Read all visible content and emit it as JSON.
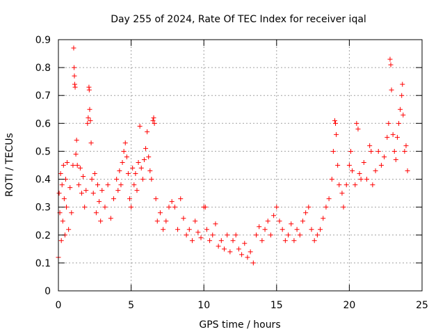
{
  "chart_data": {
    "type": "scatter",
    "title": "Day 255 of 2024, Rate Of TEC Index for receiver iqal",
    "xlabel": "GPS time / hours",
    "ylabel": "ROTI / TECUs",
    "xlim": [
      0,
      25
    ],
    "ylim": [
      0,
      0.9
    ],
    "grid": true,
    "marker": "+",
    "color": "#ff0000",
    "x_ticks": [
      0,
      5,
      10,
      15,
      20,
      25
    ],
    "x_tick_labels": [
      "0",
      "5",
      "10",
      "15",
      "20",
      "25"
    ],
    "y_ticks": [
      0,
      0.1,
      0.2,
      0.3,
      0.4,
      0.5,
      0.6,
      0.7,
      0.8,
      0.9
    ],
    "y_tick_labels": [
      "0",
      "0.1",
      "0.2",
      "0.3",
      "0.4",
      "0.5",
      "0.6",
      "0.7",
      "0.8",
      "0.9"
    ],
    "series": [
      {
        "name": "ROTI",
        "points": [
          [
            0.0,
            0.12
          ],
          [
            0.05,
            0.35
          ],
          [
            0.1,
            0.28
          ],
          [
            0.15,
            0.42
          ],
          [
            0.2,
            0.18
          ],
          [
            0.25,
            0.38
          ],
          [
            0.3,
            0.25
          ],
          [
            0.35,
            0.45
          ],
          [
            0.4,
            0.33
          ],
          [
            0.45,
            0.2
          ],
          [
            0.5,
            0.4
          ],
          [
            0.55,
            0.3
          ],
          [
            0.6,
            0.46
          ],
          [
            0.7,
            0.22
          ],
          [
            0.8,
            0.37
          ],
          [
            0.9,
            0.28
          ],
          [
            1.0,
            0.45
          ],
          [
            1.05,
            0.87
          ],
          [
            1.08,
            0.8
          ],
          [
            1.1,
            0.77
          ],
          [
            1.12,
            0.74
          ],
          [
            1.15,
            0.73
          ],
          [
            1.2,
            0.49
          ],
          [
            1.25,
            0.54
          ],
          [
            1.3,
            0.45
          ],
          [
            1.4,
            0.38
          ],
          [
            1.5,
            0.44
          ],
          [
            1.6,
            0.35
          ],
          [
            1.7,
            0.41
          ],
          [
            1.8,
            0.3
          ],
          [
            1.9,
            0.36
          ],
          [
            2.0,
            0.6
          ],
          [
            2.05,
            0.62
          ],
          [
            2.1,
            0.73
          ],
          [
            2.12,
            0.72
          ],
          [
            2.15,
            0.65
          ],
          [
            2.2,
            0.61
          ],
          [
            2.25,
            0.53
          ],
          [
            2.3,
            0.4
          ],
          [
            2.4,
            0.35
          ],
          [
            2.5,
            0.42
          ],
          [
            2.6,
            0.28
          ],
          [
            2.7,
            0.38
          ],
          [
            2.8,
            0.32
          ],
          [
            2.9,
            0.25
          ],
          [
            3.0,
            0.36
          ],
          [
            3.2,
            0.3
          ],
          [
            3.4,
            0.38
          ],
          [
            3.6,
            0.26
          ],
          [
            3.8,
            0.33
          ],
          [
            4.0,
            0.4
          ],
          [
            4.1,
            0.36
          ],
          [
            4.2,
            0.43
          ],
          [
            4.3,
            0.38
          ],
          [
            4.4,
            0.46
          ],
          [
            4.5,
            0.5
          ],
          [
            4.6,
            0.53
          ],
          [
            4.7,
            0.48
          ],
          [
            4.8,
            0.42
          ],
          [
            4.9,
            0.33
          ],
          [
            5.0,
            0.3
          ],
          [
            5.1,
            0.44
          ],
          [
            5.2,
            0.38
          ],
          [
            5.3,
            0.42
          ],
          [
            5.4,
            0.36
          ],
          [
            5.5,
            0.46
          ],
          [
            5.6,
            0.59
          ],
          [
            5.7,
            0.44
          ],
          [
            5.8,
            0.4
          ],
          [
            5.9,
            0.47
          ],
          [
            6.0,
            0.51
          ],
          [
            6.1,
            0.57
          ],
          [
            6.2,
            0.48
          ],
          [
            6.3,
            0.43
          ],
          [
            6.4,
            0.4
          ],
          [
            6.5,
            0.61
          ],
          [
            6.55,
            0.62
          ],
          [
            6.6,
            0.6
          ],
          [
            6.7,
            0.33
          ],
          [
            6.8,
            0.25
          ],
          [
            7.0,
            0.28
          ],
          [
            7.2,
            0.22
          ],
          [
            7.4,
            0.25
          ],
          [
            7.6,
            0.3
          ],
          [
            7.8,
            0.32
          ],
          [
            8.0,
            0.3
          ],
          [
            8.2,
            0.22
          ],
          [
            8.4,
            0.33
          ],
          [
            8.6,
            0.26
          ],
          [
            8.8,
            0.2
          ],
          [
            9.0,
            0.22
          ],
          [
            9.2,
            0.18
          ],
          [
            9.4,
            0.25
          ],
          [
            9.6,
            0.21
          ],
          [
            9.8,
            0.19
          ],
          [
            10.0,
            0.3
          ],
          [
            10.1,
            0.3
          ],
          [
            10.2,
            0.22
          ],
          [
            10.4,
            0.18
          ],
          [
            10.6,
            0.2
          ],
          [
            10.8,
            0.24
          ],
          [
            11.0,
            0.16
          ],
          [
            11.2,
            0.18
          ],
          [
            11.4,
            0.15
          ],
          [
            11.6,
            0.2
          ],
          [
            11.8,
            0.14
          ],
          [
            12.0,
            0.18
          ],
          [
            12.2,
            0.2
          ],
          [
            12.4,
            0.15
          ],
          [
            12.6,
            0.13
          ],
          [
            12.8,
            0.17
          ],
          [
            13.0,
            0.12
          ],
          [
            13.2,
            0.14
          ],
          [
            13.4,
            0.1
          ],
          [
            13.6,
            0.2
          ],
          [
            13.8,
            0.23
          ],
          [
            14.0,
            0.18
          ],
          [
            14.2,
            0.22
          ],
          [
            14.4,
            0.25
          ],
          [
            14.6,
            0.2
          ],
          [
            14.8,
            0.27
          ],
          [
            15.0,
            0.3
          ],
          [
            15.2,
            0.25
          ],
          [
            15.4,
            0.22
          ],
          [
            15.6,
            0.18
          ],
          [
            15.8,
            0.2
          ],
          [
            16.0,
            0.24
          ],
          [
            16.2,
            0.18
          ],
          [
            16.4,
            0.22
          ],
          [
            16.6,
            0.2
          ],
          [
            16.8,
            0.25
          ],
          [
            17.0,
            0.28
          ],
          [
            17.2,
            0.3
          ],
          [
            17.4,
            0.22
          ],
          [
            17.6,
            0.18
          ],
          [
            17.8,
            0.2
          ],
          [
            18.0,
            0.22
          ],
          [
            18.2,
            0.26
          ],
          [
            18.4,
            0.3
          ],
          [
            18.6,
            0.33
          ],
          [
            18.8,
            0.4
          ],
          [
            18.9,
            0.5
          ],
          [
            19.0,
            0.61
          ],
          [
            19.05,
            0.6
          ],
          [
            19.1,
            0.56
          ],
          [
            19.2,
            0.45
          ],
          [
            19.3,
            0.38
          ],
          [
            19.5,
            0.35
          ],
          [
            19.6,
            0.3
          ],
          [
            19.8,
            0.38
          ],
          [
            20.0,
            0.45
          ],
          [
            20.1,
            0.5
          ],
          [
            20.2,
            0.43
          ],
          [
            20.4,
            0.38
          ],
          [
            20.5,
            0.6
          ],
          [
            20.6,
            0.58
          ],
          [
            20.7,
            0.42
          ],
          [
            20.8,
            0.4
          ],
          [
            21.0,
            0.46
          ],
          [
            21.2,
            0.4
          ],
          [
            21.4,
            0.52
          ],
          [
            21.5,
            0.5
          ],
          [
            21.6,
            0.38
          ],
          [
            21.8,
            0.43
          ],
          [
            22.0,
            0.5
          ],
          [
            22.2,
            0.45
          ],
          [
            22.4,
            0.48
          ],
          [
            22.6,
            0.55
          ],
          [
            22.7,
            0.6
          ],
          [
            22.8,
            0.83
          ],
          [
            22.85,
            0.81
          ],
          [
            22.9,
            0.72
          ],
          [
            23.0,
            0.56
          ],
          [
            23.1,
            0.5
          ],
          [
            23.2,
            0.47
          ],
          [
            23.3,
            0.55
          ],
          [
            23.4,
            0.6
          ],
          [
            23.5,
            0.65
          ],
          [
            23.6,
            0.7
          ],
          [
            23.65,
            0.74
          ],
          [
            23.7,
            0.63
          ],
          [
            23.8,
            0.5
          ],
          [
            23.9,
            0.52
          ],
          [
            24.0,
            0.43
          ]
        ]
      }
    ]
  }
}
